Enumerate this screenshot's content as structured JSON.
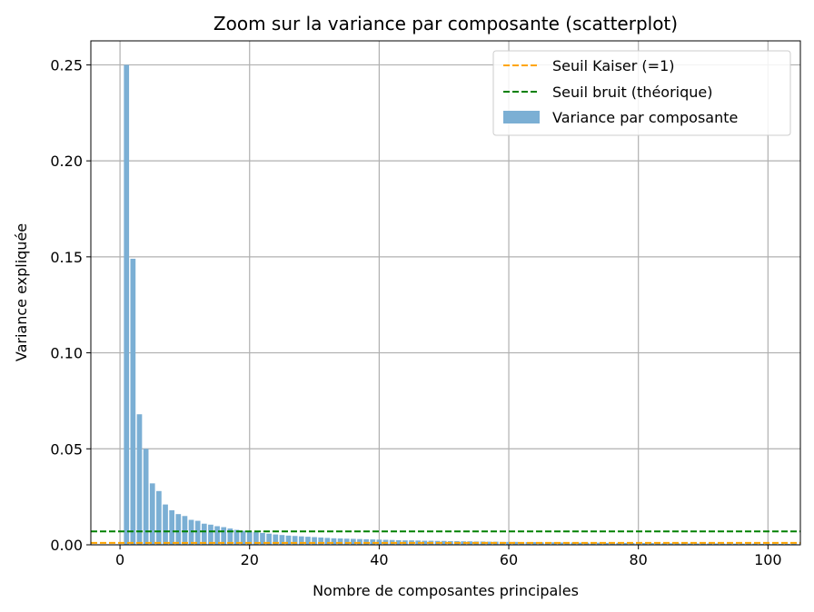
{
  "chart_data": {
    "type": "bar",
    "title": "Zoom sur la variance par composante (scatterplot)",
    "xlabel": "Nombre de composantes principales",
    "ylabel": "Variance expliquée",
    "xlim": [
      -4.5,
      105
    ],
    "ylim": [
      0,
      0.2625
    ],
    "xticks": [
      0,
      20,
      40,
      60,
      80,
      100
    ],
    "yticks": [
      0.0,
      0.05,
      0.1,
      0.15,
      0.2,
      0.25
    ],
    "xtick_labels": [
      "0",
      "20",
      "40",
      "60",
      "80",
      "100"
    ],
    "ytick_labels": [
      "0.00",
      "0.05",
      "0.10",
      "0.15",
      "0.20",
      "0.25"
    ],
    "grid": true,
    "legend_position": "top-right",
    "legend": [
      {
        "label": "Seuil Kaiser (=1)",
        "kind": "dashed-line",
        "color": "#ffa500"
      },
      {
        "label": "Seuil bruit (théorique)",
        "kind": "dashed-line",
        "color": "#008000"
      },
      {
        "label": "Variance par composante",
        "kind": "bar",
        "color": "#7bafd4"
      }
    ],
    "hlines": [
      {
        "name": "Seuil Kaiser (=1)",
        "y": 0.001,
        "color": "#ffa500"
      },
      {
        "name": "Seuil bruit (théorique)",
        "y": 0.007,
        "color": "#008000"
      }
    ],
    "series": [
      {
        "name": "Variance par composante",
        "color": "#7bafd4",
        "x": [
          1,
          2,
          3,
          4,
          5,
          6,
          7,
          8,
          9,
          10,
          11,
          12,
          13,
          14,
          15,
          16,
          17,
          18,
          19,
          20,
          21,
          22,
          23,
          24,
          25,
          26,
          27,
          28,
          29,
          30,
          31,
          32,
          33,
          34,
          35,
          36,
          37,
          38,
          39,
          40,
          41,
          42,
          43,
          44,
          45,
          46,
          47,
          48,
          49,
          50,
          51,
          52,
          53,
          54,
          55,
          56,
          57,
          58,
          59,
          60,
          61,
          62,
          63,
          64,
          65,
          66,
          67,
          68,
          69,
          70,
          71,
          72,
          73,
          74,
          75,
          76,
          77,
          78,
          79,
          80,
          81,
          82,
          83,
          84,
          85,
          86,
          87,
          88,
          89,
          90,
          91,
          92,
          93,
          94,
          95,
          96,
          97,
          98,
          99,
          100,
          101,
          102,
          103,
          104
        ],
        "values": [
          0.25,
          0.149,
          0.068,
          0.05,
          0.032,
          0.028,
          0.021,
          0.018,
          0.016,
          0.015,
          0.013,
          0.0125,
          0.011,
          0.0105,
          0.0097,
          0.0092,
          0.0085,
          0.0078,
          0.0073,
          0.0069,
          0.0066,
          0.0062,
          0.0058,
          0.0054,
          0.0051,
          0.0048,
          0.0046,
          0.0044,
          0.0042,
          0.004,
          0.0038,
          0.0036,
          0.0034,
          0.0033,
          0.0032,
          0.0031,
          0.003,
          0.0029,
          0.0028,
          0.0027,
          0.0026,
          0.0025,
          0.0024,
          0.0023,
          0.0023,
          0.0022,
          0.0021,
          0.0021,
          0.002,
          0.002,
          0.0019,
          0.0019,
          0.0018,
          0.0018,
          0.0017,
          0.0017,
          0.0016,
          0.0016,
          0.0015,
          0.0015,
          0.0015,
          0.0014,
          0.0014,
          0.0014,
          0.0013,
          0.0013,
          0.0013,
          0.0012,
          0.0012,
          0.0012,
          0.0011,
          0.0011,
          0.0011,
          0.0011,
          0.001,
          0.001,
          0.001,
          0.001,
          0.0009,
          0.0009,
          0.0009,
          0.0009,
          0.0008,
          0.0008,
          0.0008,
          0.0008,
          0.0008,
          0.0007,
          0.0007,
          0.0007,
          0.0007,
          0.0007,
          0.0006,
          0.0006,
          0.0006,
          0.0006,
          0.0006,
          0.0006,
          0.0005,
          0.0005,
          0.0005,
          0.0005,
          0.0005,
          0.0005
        ]
      }
    ]
  }
}
